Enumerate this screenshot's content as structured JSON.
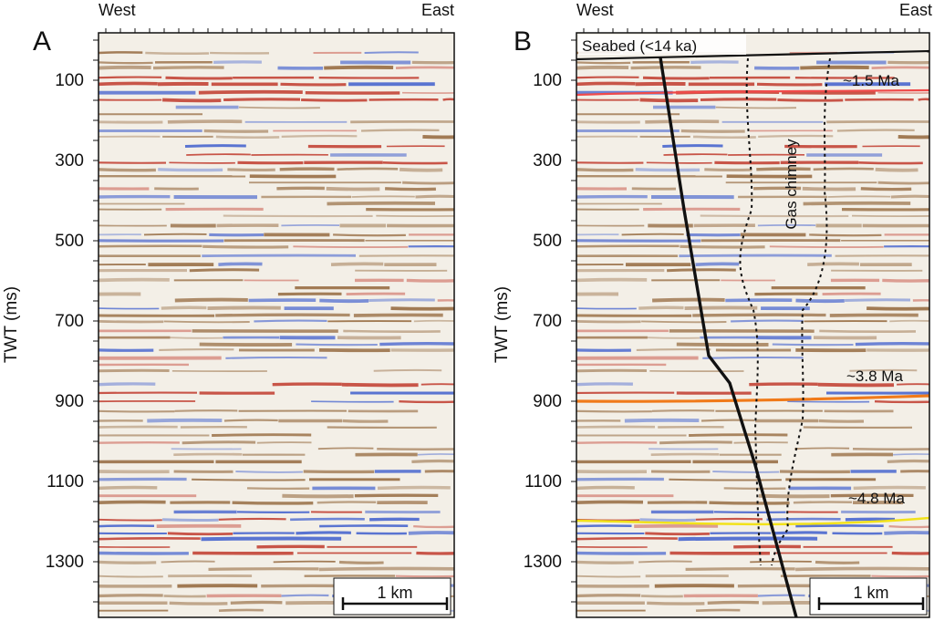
{
  "panels": [
    {
      "letter": "A",
      "direction_left": "West",
      "direction_right": "East",
      "axis_label": "TWT (ms)",
      "ticks": [
        "100",
        "300",
        "500",
        "700",
        "900",
        "1100",
        "1300"
      ],
      "scale_bar": "1 km",
      "annotations": null
    },
    {
      "letter": "B",
      "direction_left": "West",
      "direction_right": "East",
      "axis_label": "TWT (ms)",
      "ticks": [
        "100",
        "300",
        "500",
        "700",
        "900",
        "1100",
        "1300"
      ],
      "scale_bar": "1 km",
      "annotations": {
        "seabed": "Seabed (<14 ka)",
        "horizon_1": "~1.5 Ma",
        "horizon_2": "~3.8 Ma",
        "horizon_3": "~4.8 Ma",
        "chimney": "Gas chimney"
      }
    }
  ],
  "colors": {
    "reflector_brown": "#8a5a2b",
    "reflector_red": "#c0392b",
    "reflector_blue": "#3355cc",
    "horizon_1p5": "#e84a4a",
    "horizon_3p8": "#f07a1a",
    "horizon_4p8": "#f2e21a",
    "fault": "#111111"
  }
}
